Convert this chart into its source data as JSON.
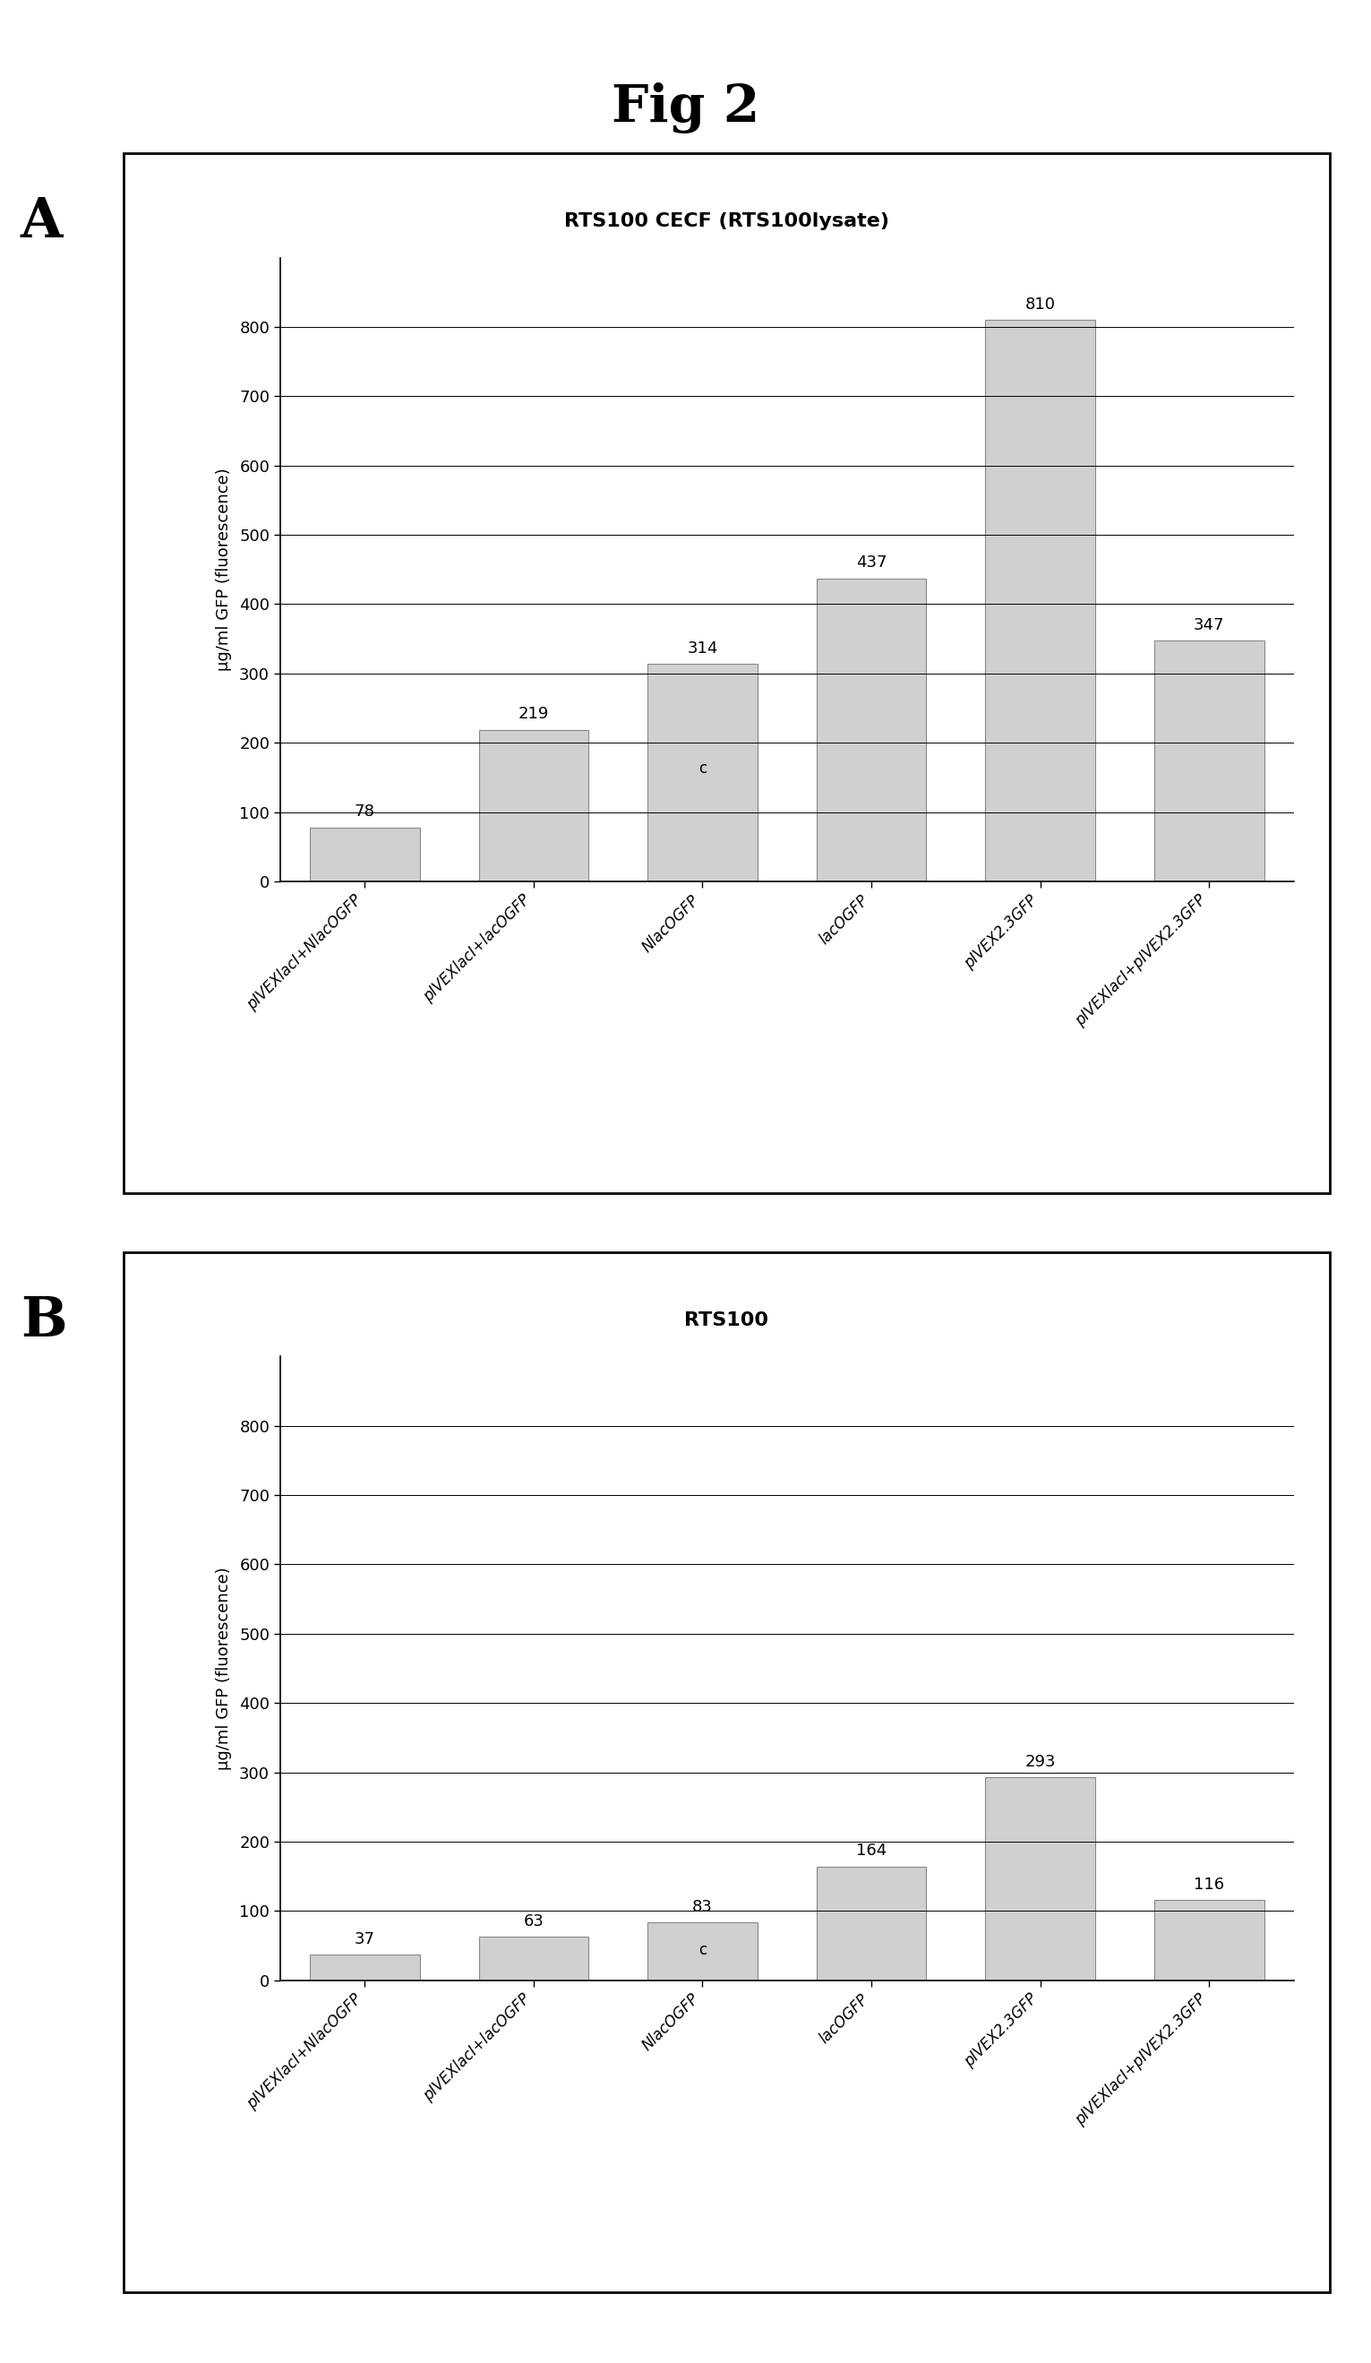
{
  "fig_title": "Fig 2",
  "panel_A": {
    "title": "RTS100 CECF (RTS100lysate)",
    "ylabel": "µg/ml GFP (fluorescence)",
    "categories": [
      "pIVEXlacI+NlacOGFP",
      "pIVEXlacI+lacOGFP",
      "NlacOGFP",
      "lacOGFP",
      "pIVEX2.3GFP",
      "pIVEXlacI+pIVEX2.3GFP"
    ],
    "values": [
      78,
      219,
      314,
      437,
      810,
      347
    ],
    "ylim": [
      0,
      900
    ],
    "yticks": [
      0,
      100,
      200,
      300,
      400,
      500,
      600,
      700,
      800
    ],
    "label": "A",
    "c_bar_idx": 2
  },
  "panel_B": {
    "title": "RTS100",
    "ylabel": "µg/ml GFP (fluorescence)",
    "categories": [
      "pIVEXlacI+NlacOGFP",
      "pIVEXlacI+lacOGFP",
      "NlacOGFP",
      "lacOGFP",
      "pIVEX2.3GFP",
      "pIVEXlacI+pIVEX2.3GFP"
    ],
    "values": [
      37,
      63,
      83,
      164,
      293,
      116
    ],
    "ylim": [
      0,
      900
    ],
    "yticks": [
      0,
      100,
      200,
      300,
      400,
      500,
      600,
      700,
      800
    ],
    "label": "B",
    "c_bar_idx": 2
  },
  "fig_bg": "#ffffff",
  "panel_bg": "#ffffff"
}
